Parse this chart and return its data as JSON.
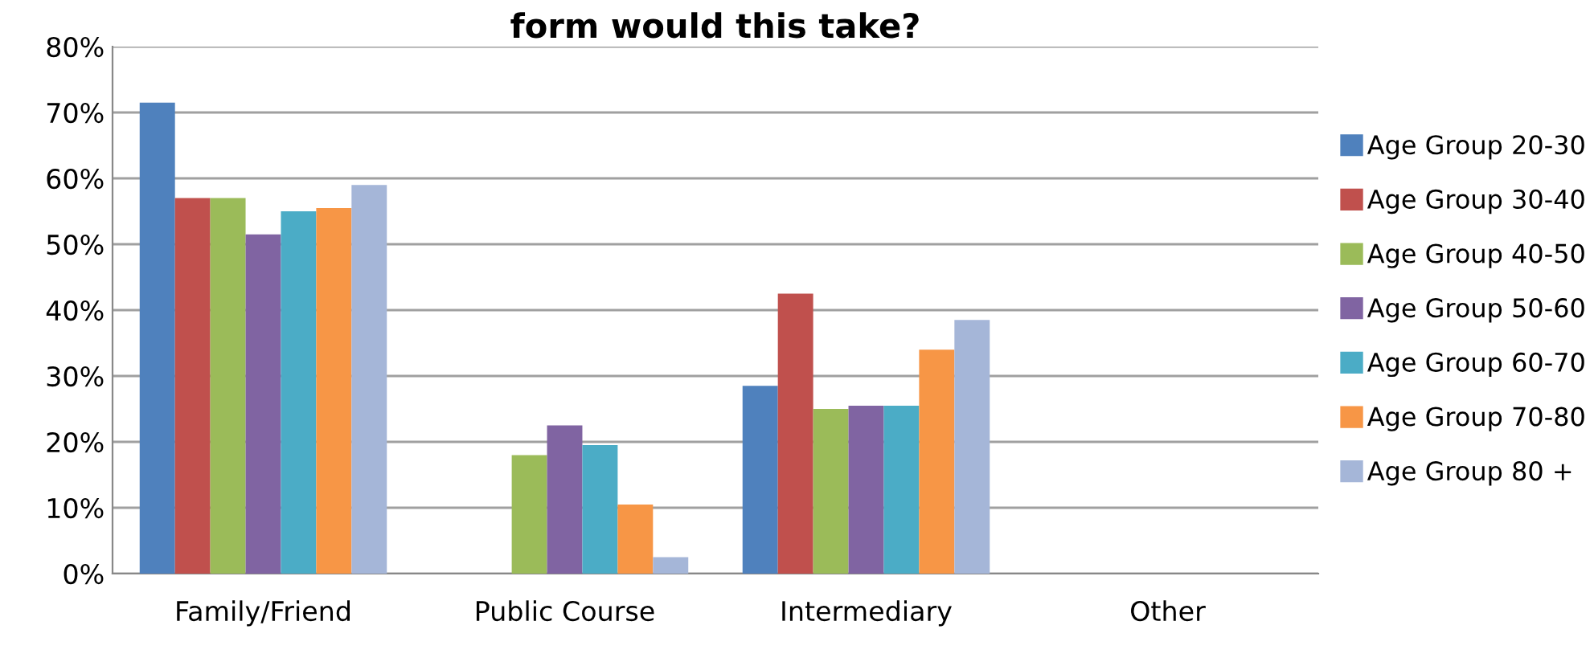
{
  "chart_data": {
    "type": "bar",
    "title": "form would this take?",
    "categories": [
      "Family/Friend",
      "Public Course",
      "Intermediary",
      "Other"
    ],
    "series": [
      {
        "name": "Age Group 20-30",
        "color": "#4f81bd",
        "values": [
          71.5,
          0,
          28.5,
          0
        ]
      },
      {
        "name": "Age Group 30-40",
        "color": "#c0504d",
        "values": [
          57,
          0,
          42.5,
          0
        ]
      },
      {
        "name": "Age Group 40-50",
        "color": "#9bbb59",
        "values": [
          57,
          18,
          25,
          0
        ]
      },
      {
        "name": "Age Group 50-60",
        "color": "#8064a2",
        "values": [
          51.5,
          22.5,
          25.5,
          0
        ]
      },
      {
        "name": "Age Group 60-70",
        "color": "#4bacc6",
        "values": [
          55,
          19.5,
          25.5,
          0
        ]
      },
      {
        "name": "Age Group 70-80",
        "color": "#f79646",
        "values": [
          55.5,
          10.5,
          34,
          0
        ]
      },
      {
        "name": "Age Group 80 +",
        "color": "#a5b6d8",
        "values": [
          59,
          2.5,
          38.5,
          0
        ]
      }
    ],
    "ylim": [
      0,
      80
    ],
    "yticks": [
      {
        "value": 0,
        "label": "0%"
      },
      {
        "value": 10,
        "label": "10%"
      },
      {
        "value": 20,
        "label": "20%"
      },
      {
        "value": 30,
        "label": "30%"
      },
      {
        "value": 40,
        "label": "40%"
      },
      {
        "value": 50,
        "label": "50%"
      },
      {
        "value": 60,
        "label": "60%"
      },
      {
        "value": 70,
        "label": "70%"
      },
      {
        "value": 80,
        "label": "80%"
      }
    ],
    "grid": "y",
    "legend": "right"
  }
}
